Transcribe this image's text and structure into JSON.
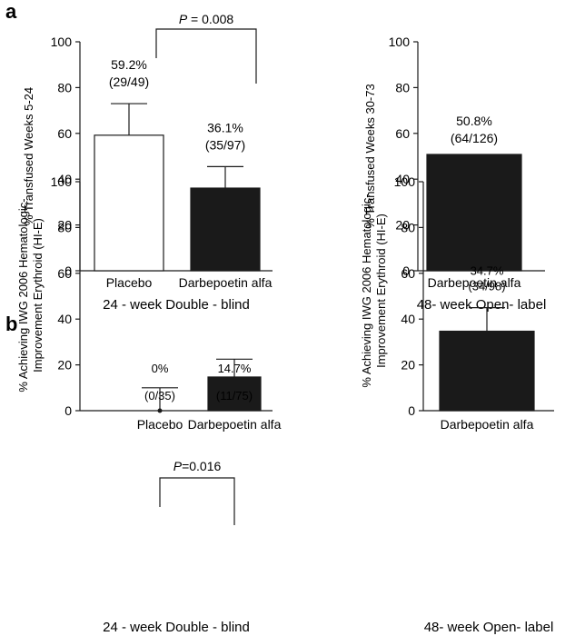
{
  "panel_a": {
    "letter": "a"
  },
  "panel_b": {
    "letter": "b"
  },
  "chart_data": [
    {
      "id": "a-left",
      "type": "bar",
      "ylabel": "% Transfused Weeks 5-24",
      "ylim": [
        0,
        100
      ],
      "yticks": [
        0,
        20,
        40,
        60,
        80,
        100
      ],
      "categories": [
        "Placebo",
        "Darbepoetin alfa"
      ],
      "values": [
        59.2,
        36.1
      ],
      "error_upper": [
        73,
        45.5
      ],
      "fills": [
        "#ffffff",
        "#1a1a1a"
      ],
      "labels": [
        [
          "59.2%",
          "(29/49)"
        ],
        [
          "36.1%",
          "(35/97)"
        ]
      ],
      "group_label": "24 - week Double - blind",
      "pvalue": {
        "text": "P = 0.008",
        "between": [
          0,
          1
        ]
      }
    },
    {
      "id": "a-right",
      "type": "bar",
      "ylabel": "% Transfused Weeks 30-73",
      "ylim": [
        0,
        100
      ],
      "yticks": [
        0,
        20,
        40,
        60,
        80,
        100
      ],
      "categories": [
        "Darbepoetin alfa"
      ],
      "values": [
        50.8
      ],
      "error_upper": [
        null
      ],
      "fills": [
        "#1a1a1a"
      ],
      "labels": [
        [
          "50.8%",
          "(64/126)"
        ]
      ],
      "group_label": "48- week Open- label"
    },
    {
      "id": "b-left",
      "type": "bar",
      "ylabel": "% Achieving IWG 2006 Hematologic- Improvement Erythroid (HI-E)",
      "ylabel_lines": [
        "% Achieving IWG 2006 Hematologic-",
        "Improvement Erythroid (HI-E)"
      ],
      "ylim": [
        0,
        100
      ],
      "yticks": [
        0,
        20,
        40,
        60,
        80,
        100
      ],
      "categories": [
        "Placebo",
        "Darbepoetin alfa"
      ],
      "values": [
        0,
        14.7
      ],
      "error_upper": [
        10,
        22.5
      ],
      "fills": [
        "#ffffff",
        "#1a1a1a"
      ],
      "labels": [
        [
          "0%",
          "(0/35)"
        ],
        [
          "14.7%",
          "(11/75)"
        ]
      ],
      "group_label": "24 - week Double - blind",
      "pvalue": {
        "text": "P=0.016",
        "between": [
          0,
          1
        ]
      }
    },
    {
      "id": "b-right",
      "type": "bar",
      "ylabel": "% Achieving IWG 2006 Hematologic- Improvement Erythroid (HI-E)",
      "ylabel_lines": [
        "% Achieving IWG 2006 Hematologic-",
        "Improvement Erythroid (HI-E)"
      ],
      "ylim": [
        0,
        100
      ],
      "yticks": [
        0,
        20,
        40,
        60,
        80,
        100
      ],
      "categories": [
        "Darbepoetin alfa"
      ],
      "values": [
        34.7
      ],
      "error_upper": [
        45
      ],
      "fills": [
        "#1a1a1a"
      ],
      "labels": [
        [
          "34.7%",
          "(34/98)"
        ]
      ],
      "group_label": "48- week Open- label"
    }
  ]
}
